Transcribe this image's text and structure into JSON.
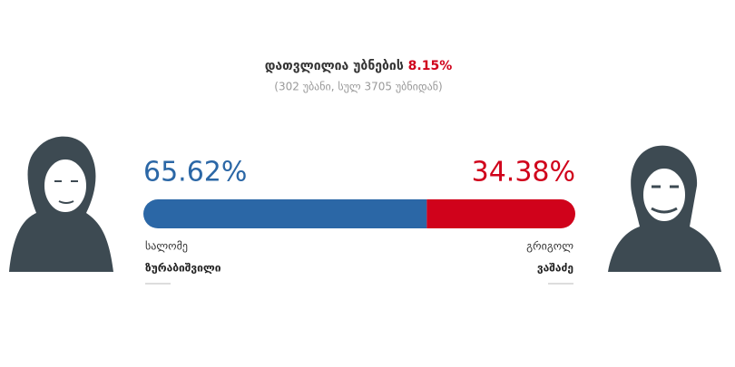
{
  "header": {
    "title": "დათვლილია უბნების",
    "percent": "8.15%",
    "subtitle": "(302 უბანი, სულ 3705 უბნიდან)"
  },
  "candidates": [
    {
      "first_name": "სალომე",
      "last_name": "ზურაბიშვილი",
      "share": 65.62,
      "share_label": "65.62%",
      "color": "#2b67a6"
    },
    {
      "first_name": "გრიგოლ",
      "last_name": "ვაშაძე",
      "share": 34.38,
      "share_label": "34.38%",
      "color": "#d0021b"
    }
  ]
}
